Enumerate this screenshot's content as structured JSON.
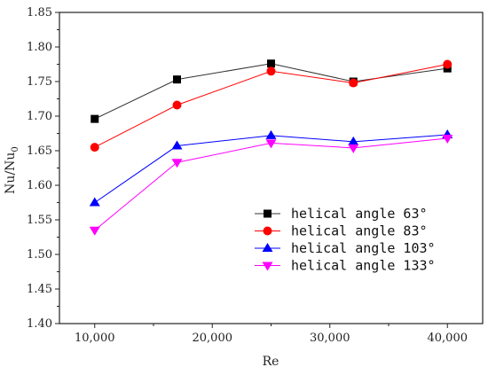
{
  "chart_data": {
    "type": "line",
    "title": "",
    "xlabel": "Re",
    "ylabel": "Nu/Nu0",
    "ylabel_main": "Nu/Nu",
    "ylabel_sub": "0",
    "x": [
      10000,
      17000,
      25000,
      32000,
      40000
    ],
    "xticks": [
      10000,
      20000,
      30000,
      40000
    ],
    "xtick_labels": [
      "10,000",
      "20,000",
      "30,000",
      "40,000"
    ],
    "xlim": [
      7000,
      43000
    ],
    "yticks": [
      1.4,
      1.45,
      1.5,
      1.55,
      1.6,
      1.65,
      1.7,
      1.75,
      1.8,
      1.85
    ],
    "ytick_labels": [
      "1.40",
      "1.45",
      "1.50",
      "1.55",
      "1.60",
      "1.65",
      "1.70",
      "1.75",
      "1.80",
      "1.85"
    ],
    "ylim": [
      1.4,
      1.85
    ],
    "grid": false,
    "legend_position": "lower-right",
    "series": [
      {
        "name": "helical angle 63°",
        "values": [
          1.696,
          1.753,
          1.776,
          1.75,
          1.769
        ],
        "color": "#000000",
        "marker": "square",
        "line_color": "#333333"
      },
      {
        "name": "helical angle 83°",
        "values": [
          1.655,
          1.716,
          1.765,
          1.748,
          1.775
        ],
        "color": "#ff0000",
        "marker": "circle",
        "line_color": "#ff0000"
      },
      {
        "name": "helical angle 103°",
        "values": [
          1.575,
          1.657,
          1.672,
          1.663,
          1.673
        ],
        "color": "#0000ff",
        "marker": "triangle-up",
        "line_color": "#0000ff"
      },
      {
        "name": "helical angle 133°",
        "values": [
          1.535,
          1.633,
          1.661,
          1.654,
          1.668
        ],
        "color": "#ff00ff",
        "marker": "triangle-down",
        "line_color": "#ff00ff"
      }
    ]
  }
}
